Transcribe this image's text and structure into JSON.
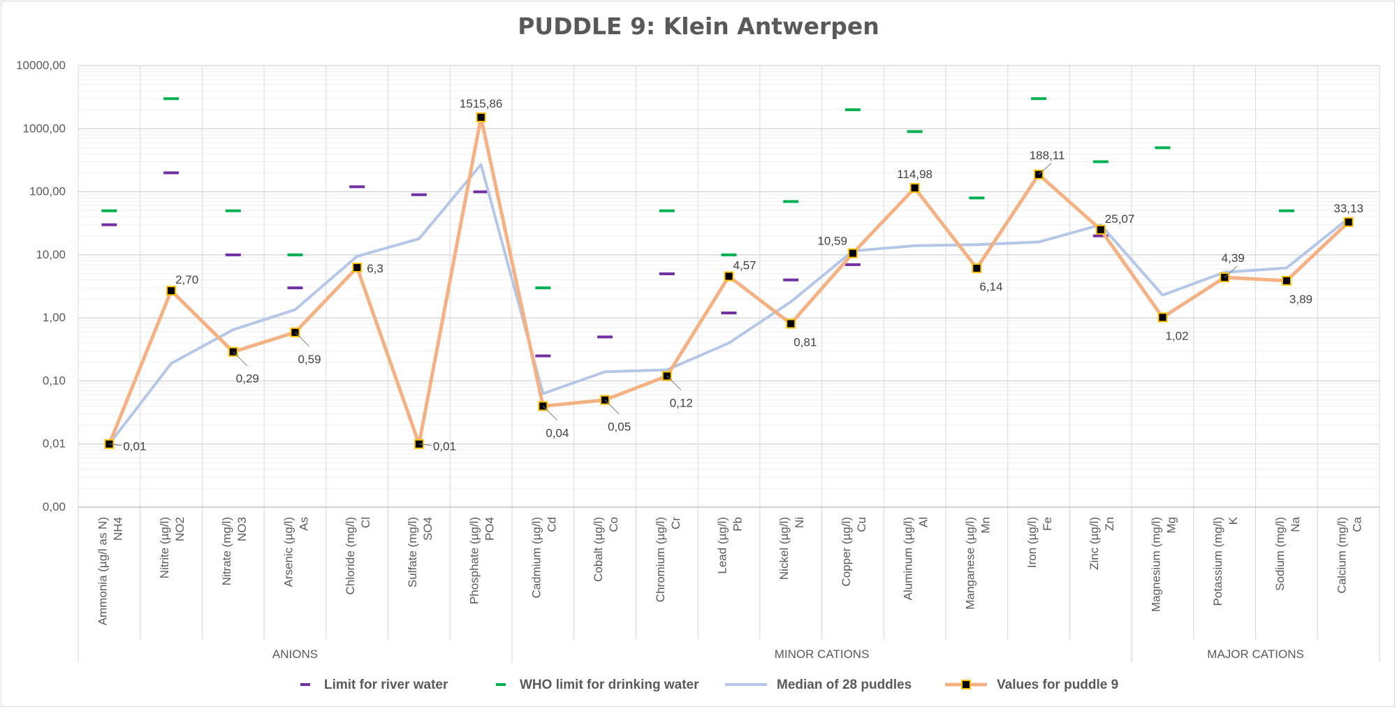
{
  "chart_data": {
    "type": "line",
    "title": "PUDDLE 9: Klein Antwerpen",
    "y_scale": "log",
    "y_ticks": [
      "0,00",
      "0,01",
      "0,10",
      "1,00",
      "10,00",
      "100,00",
      "1000,00",
      "10000,00"
    ],
    "y_tick_values": [
      0.001,
      0.01,
      0.1,
      1,
      10,
      100,
      1000,
      10000
    ],
    "grid": true,
    "legend_position": "bottom",
    "categories": [
      {
        "name": "Ammonia (µg/l as N)",
        "code": "NH4"
      },
      {
        "name": "Nitrite (µg/l)",
        "code": "NO2"
      },
      {
        "name": "Nitrate (mg/l)",
        "code": "NO3"
      },
      {
        "name": "Arsenic (µg/l)",
        "code": "As"
      },
      {
        "name": "Chloride (mg/l)",
        "code": "Cl"
      },
      {
        "name": "Sulfate (mg/l)",
        "code": "SO4"
      },
      {
        "name": "Phosphate (µg/l)",
        "code": "PO4"
      },
      {
        "name": "Cadmium (µg/l)",
        "code": "Cd"
      },
      {
        "name": "Cobalt (µg/l)",
        "code": "Co"
      },
      {
        "name": "Chromium (µg/l)",
        "code": "Cr"
      },
      {
        "name": "Lead (µg/l)",
        "code": "Pb"
      },
      {
        "name": "Nickel (µg/l)",
        "code": "Ni"
      },
      {
        "name": "Copper (µg/l)",
        "code": "Cu"
      },
      {
        "name": "Aluminum (µg/l)",
        "code": "Al"
      },
      {
        "name": "Manganese (µg/l)",
        "code": "Mn"
      },
      {
        "name": "Iron (µg/l)",
        "code": "Fe"
      },
      {
        "name": "Zinc (µg/l)",
        "code": "Zn"
      },
      {
        "name": "Magnesium (mg/l)",
        "code": "Mg"
      },
      {
        "name": "Potassium (mg/l)",
        "code": "K"
      },
      {
        "name": "Sodium (mg/l)",
        "code": "Na"
      },
      {
        "name": "Calcium (mg/l)",
        "code": "Ca"
      }
    ],
    "groups": [
      {
        "label": "ANIONS",
        "start": 0,
        "end": 6
      },
      {
        "label": "MINOR CATIONS",
        "start": 7,
        "end": 16
      },
      {
        "label": "MAJOR CATIONS",
        "start": 17,
        "end": 20
      }
    ],
    "series": [
      {
        "name": "Limit for river water",
        "kind": "dash-marker",
        "color": "#7030a0",
        "values": [
          30,
          200,
          10,
          3,
          120,
          90,
          100,
          0.25,
          0.5,
          5,
          1.2,
          4,
          7,
          null,
          null,
          null,
          20,
          null,
          null,
          null,
          null
        ]
      },
      {
        "name": "WHO limit for drinking water",
        "kind": "dash-marker",
        "color": "#00b050",
        "values": [
          50,
          3000,
          50,
          10,
          null,
          null,
          null,
          3,
          null,
          50,
          10,
          70,
          2000,
          900,
          80,
          3000,
          300,
          500,
          null,
          50,
          null
        ]
      },
      {
        "name": "Median of 28 puddles",
        "kind": "line",
        "color": "#b4c7e7",
        "values": [
          0.01,
          0.19,
          0.65,
          1.35,
          9.5,
          18,
          270,
          0.063,
          0.14,
          0.15,
          0.4,
          1.8,
          11.5,
          14,
          14.5,
          16,
          30,
          2.3,
          5.3,
          6.2,
          38
        ]
      },
      {
        "name": "Values for puddle 9",
        "kind": "line-marker",
        "color": "#f4b183",
        "marker_fill": "#000000",
        "marker_edge": "#ffc000",
        "values": [
          0.01,
          2.7,
          0.29,
          0.59,
          6.3,
          0.01,
          1515.86,
          0.04,
          0.05,
          0.12,
          4.57,
          0.81,
          10.59,
          114.98,
          6.14,
          188.11,
          25.07,
          1.02,
          4.39,
          3.89,
          33.13
        ],
        "labels": [
          "0,01",
          "2,70",
          "0,29",
          "0,59",
          "6,3",
          "0,01",
          "1515,86",
          "0,04",
          "0,05",
          "0,12",
          "4,57",
          "0,81",
          "10,59",
          "114,98",
          "6,14",
          "188,11",
          "25,07",
          "1,02",
          "4,39",
          "3,89",
          "33,13"
        ],
        "label_positions": [
          "right-leader",
          "top-right",
          "bottom-right-leader",
          "bottom-right-leader",
          "right",
          "right-leader",
          "top",
          "bottom-right-leader",
          "bottom-right-leader",
          "bottom-right-leader",
          "top-right",
          "bottom-right",
          "top-left",
          "top",
          "bottom-right",
          "top-leader",
          "top-right",
          "bottom-right",
          "top-leader",
          "bottom-right",
          "top"
        ]
      }
    ]
  }
}
